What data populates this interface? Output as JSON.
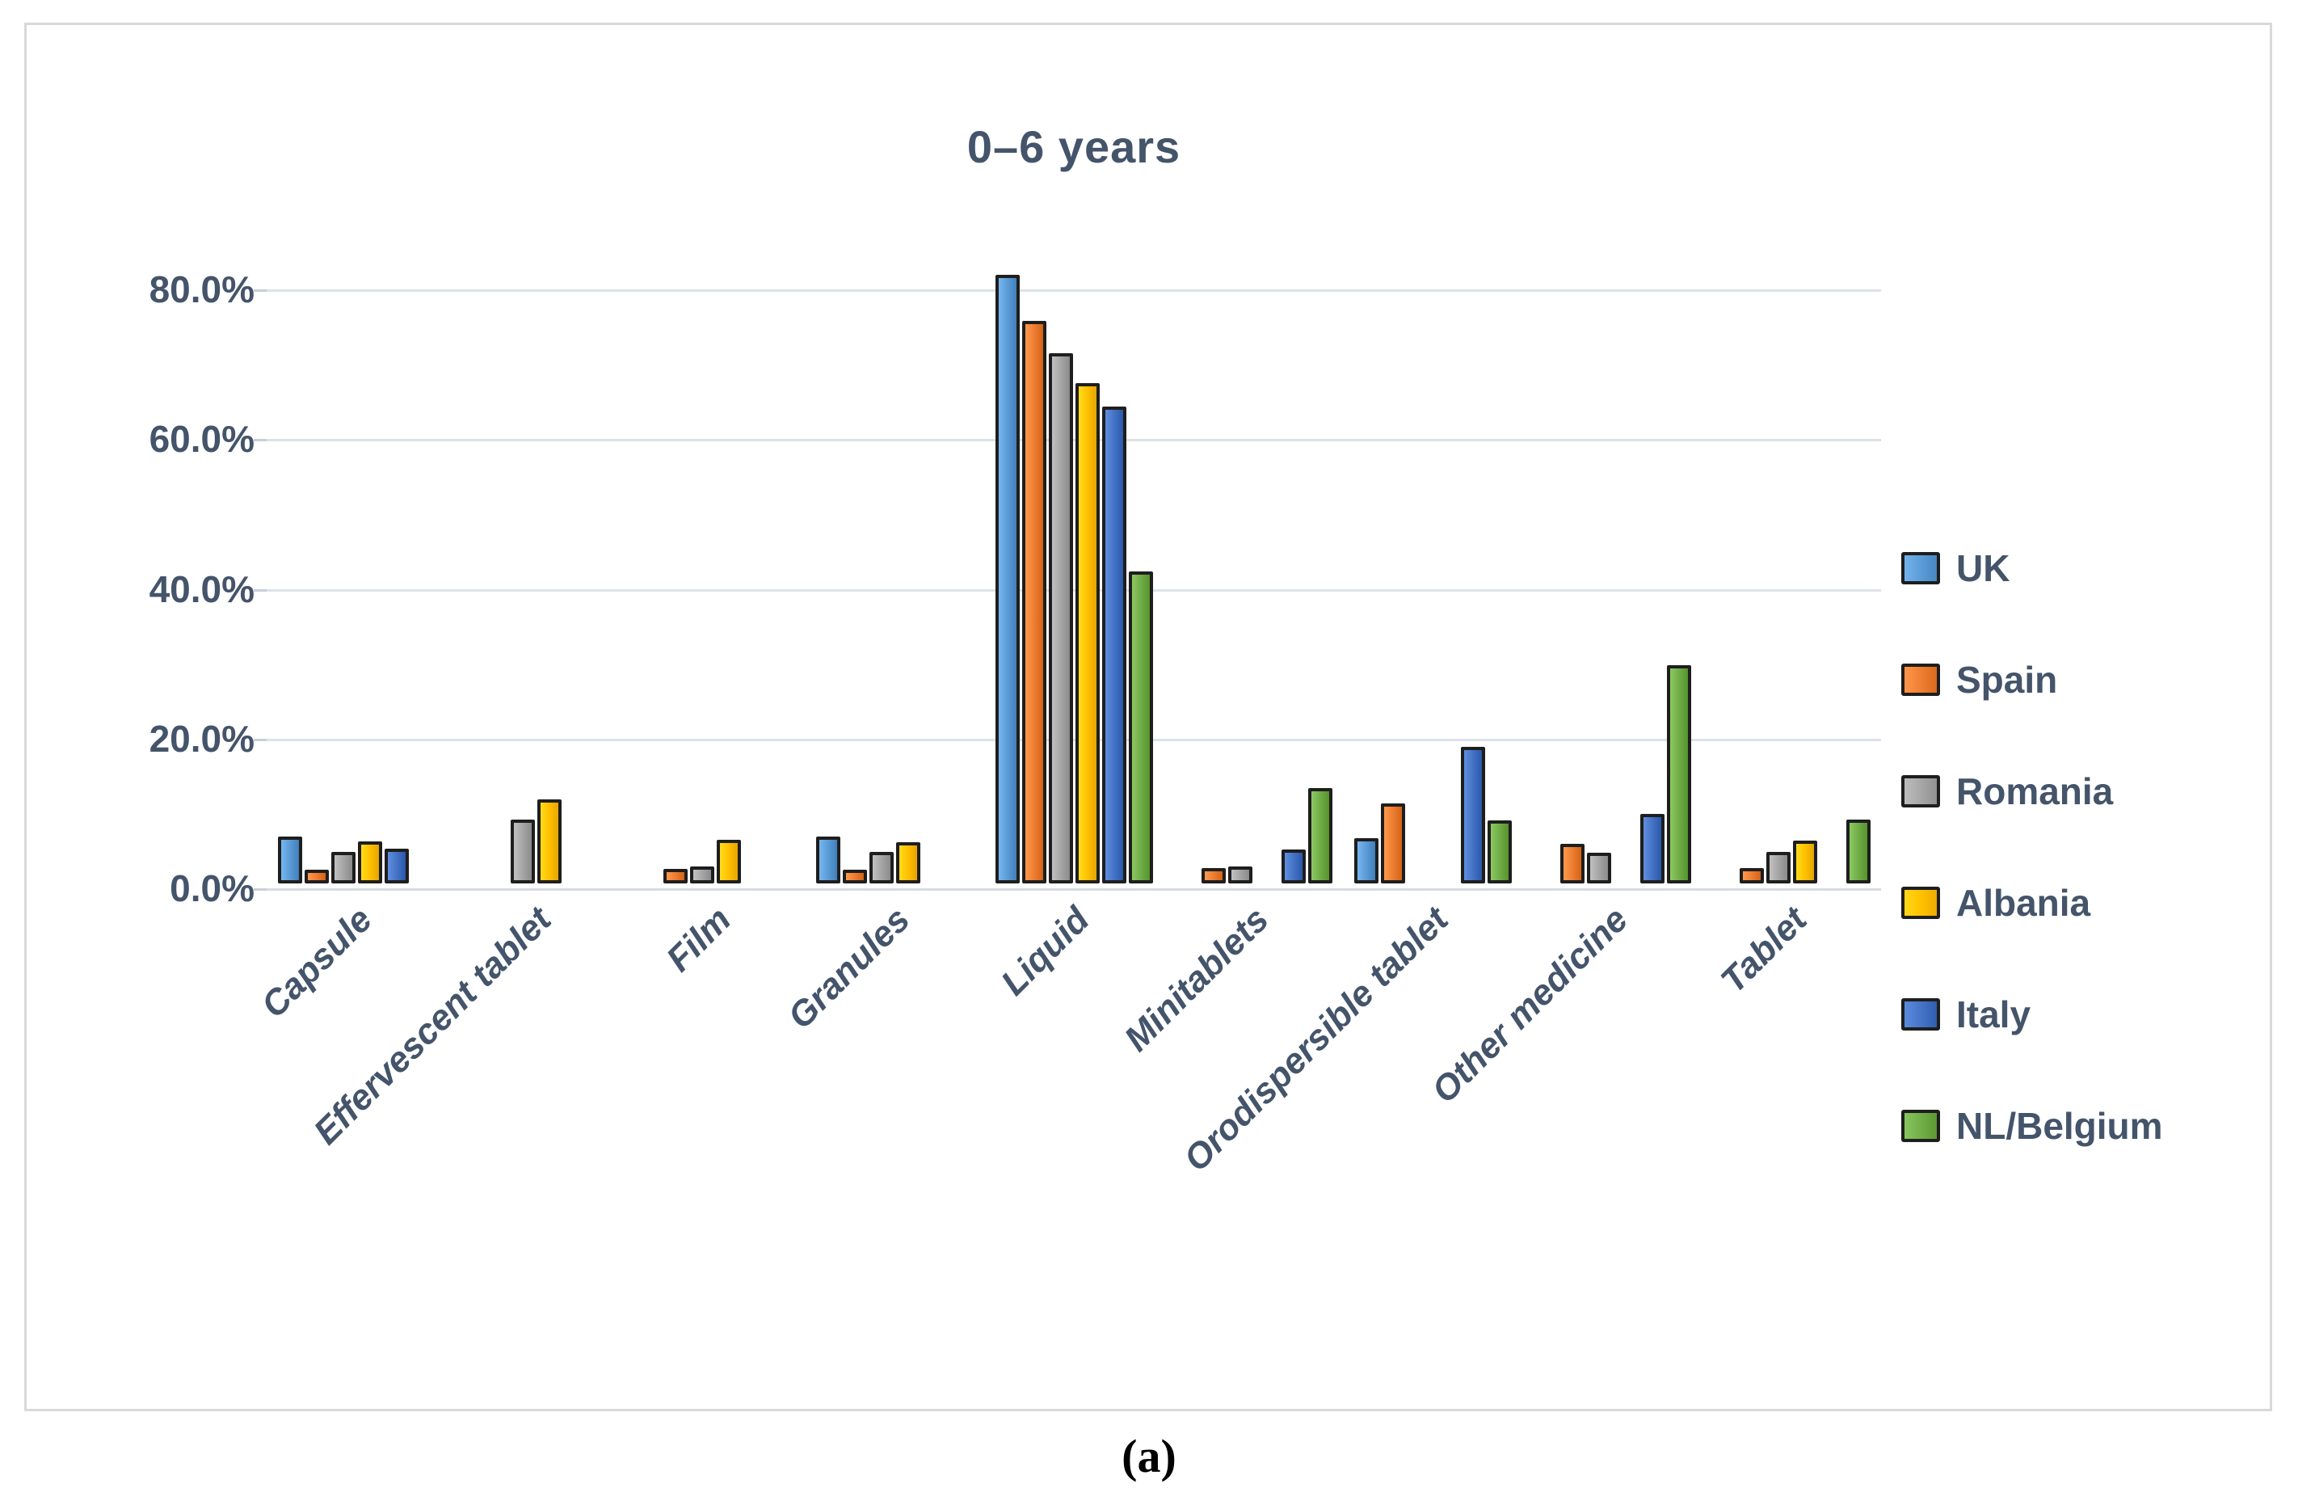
{
  "figure": {
    "title": "0–6 years",
    "caption": "(a)"
  },
  "chart_data": {
    "type": "bar",
    "title": "0–6 years",
    "categories": [
      "Capsule",
      "Effervescent tablet",
      "Film",
      "Granules",
      "Liquid",
      "Minitablets",
      "Orodispersible tablet",
      "Other medicine",
      "Tablet"
    ],
    "series": [
      {
        "name": "UK",
        "color": "#5B9BD5",
        "values": [
          6.3,
          0,
          0,
          6.3,
          81.3,
          0,
          6.0,
          0,
          0
        ]
      },
      {
        "name": "Spain",
        "color": "#ED7D31",
        "values": [
          1.8,
          0,
          1.9,
          1.8,
          75.1,
          2.1,
          10.7,
          5.3,
          2.1
        ]
      },
      {
        "name": "Romania",
        "color": "#A5A5A5",
        "values": [
          4.2,
          8.5,
          2.3,
          4.2,
          70.8,
          2.3,
          0,
          4.1,
          4.2
        ]
      },
      {
        "name": "Albania",
        "color": "#FFC000",
        "values": [
          5.6,
          11.2,
          5.8,
          5.5,
          66.8,
          0,
          0,
          0,
          5.7
        ]
      },
      {
        "name": "Italy",
        "color": "#4472C4",
        "values": [
          4.6,
          0,
          0,
          0,
          63.7,
          4.5,
          18.2,
          9.3,
          0
        ]
      },
      {
        "name": "NL/Belgium",
        "color": "#70AD47",
        "values": [
          0,
          0,
          0,
          0,
          41.7,
          12.7,
          8.4,
          29.2,
          8.5
        ]
      }
    ],
    "xlabel": "",
    "ylabel": "",
    "y_ticks": [
      {
        "value": 0,
        "label": "0.0%"
      },
      {
        "value": 20,
        "label": "20.0%"
      },
      {
        "value": 40,
        "label": "40.0%"
      },
      {
        "value": 60,
        "label": "60.0%"
      },
      {
        "value": 80,
        "label": "80.0%"
      }
    ],
    "ylim": [
      0,
      86
    ],
    "grid": true,
    "legend_position": "right",
    "text_color": "#44546a",
    "gridline_color": "#dde1e9",
    "bar_border_color": "#1e1e1e"
  }
}
